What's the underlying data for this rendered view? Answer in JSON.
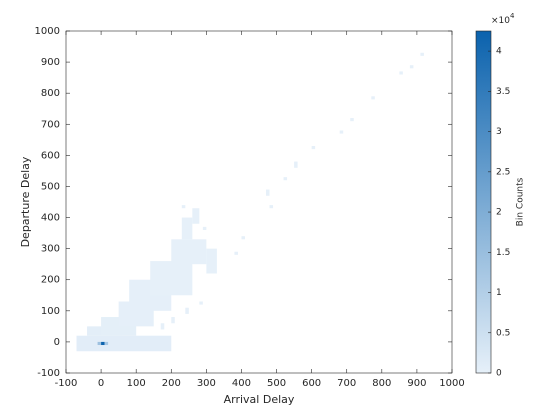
{
  "chart_data": {
    "type": "histogram2",
    "xlabel": "Arrival Delay",
    "ylabel": "Departure Delay",
    "xlim": [
      -100,
      1000
    ],
    "ylim": [
      -100,
      1000
    ],
    "xticks": [
      -100,
      0,
      100,
      200,
      300,
      400,
      500,
      600,
      700,
      800,
      900,
      1000
    ],
    "yticks": [
      -100,
      0,
      100,
      200,
      300,
      400,
      500,
      600,
      700,
      800,
      900,
      1000
    ],
    "colormap": [
      "#e6f0f9",
      "#0b62ad"
    ],
    "clim": [
      0,
      42500
    ],
    "colorbar_label": "Bin Counts",
    "colorbar_exponent": "×10",
    "colorbar_exponent_power": "4",
    "colorbar_ticks": [
      0,
      {
        "value": 5000,
        "label": "0.5"
      },
      {
        "value": 10000,
        "label": "1"
      },
      {
        "value": 15000,
        "label": "1.5"
      },
      {
        "value": 20000,
        "label": "2"
      },
      {
        "value": 25000,
        "label": "2.5"
      },
      {
        "value": 30000,
        "label": "3"
      },
      {
        "value": 35000,
        "label": "3.5"
      },
      {
        "value": 40000,
        "label": "4"
      }
    ],
    "cells": [
      {
        "x": [
          -70,
          200
        ],
        "y": [
          -30,
          20
        ],
        "count": 800
      },
      {
        "x": [
          -40,
          60
        ],
        "y": [
          20,
          50
        ],
        "count": 600
      },
      {
        "x": [
          0,
          100
        ],
        "y": [
          20,
          80
        ],
        "count": 400
      },
      {
        "x": [
          50,
          150
        ],
        "y": [
          50,
          130
        ],
        "count": 250
      },
      {
        "x": [
          80,
          200
        ],
        "y": [
          100,
          200
        ],
        "count": 150
      },
      {
        "x": [
          140,
          260
        ],
        "y": [
          150,
          260
        ],
        "count": 80
      },
      {
        "x": [
          200,
          300
        ],
        "y": [
          250,
          330
        ],
        "count": 40
      },
      {
        "x": [
          230,
          260
        ],
        "y": [
          330,
          400
        ],
        "count": 10
      },
      {
        "x": [
          260,
          280
        ],
        "y": [
          380,
          430
        ],
        "count": 5
      },
      {
        "x": [
          -10,
          0
        ],
        "y": [
          -10,
          0
        ],
        "count": 14000
      },
      {
        "x": [
          0,
          10
        ],
        "y": [
          -10,
          0
        ],
        "count": 42000
      },
      {
        "x": [
          10,
          20
        ],
        "y": [
          -10,
          0
        ],
        "count": 12000
      },
      {
        "x": [
          290,
          300
        ],
        "y": [
          360,
          370
        ],
        "count": 2
      },
      {
        "x": [
          230,
          240
        ],
        "y": [
          430,
          440
        ],
        "count": 2
      },
      {
        "x": [
          470,
          480
        ],
        "y": [
          470,
          490
        ],
        "count": 1
      },
      {
        "x": [
          480,
          490
        ],
        "y": [
          430,
          440
        ],
        "count": 1
      },
      {
        "x": [
          520,
          530
        ],
        "y": [
          520,
          530
        ],
        "count": 1
      },
      {
        "x": [
          550,
          560
        ],
        "y": [
          560,
          580
        ],
        "count": 1
      },
      {
        "x": [
          600,
          610
        ],
        "y": [
          620,
          630
        ],
        "count": 1
      },
      {
        "x": [
          680,
          690
        ],
        "y": [
          670,
          680
        ],
        "count": 1
      },
      {
        "x": [
          710,
          720
        ],
        "y": [
          710,
          720
        ],
        "count": 1
      },
      {
        "x": [
          770,
          780
        ],
        "y": [
          780,
          790
        ],
        "count": 1
      },
      {
        "x": [
          850,
          860
        ],
        "y": [
          860,
          870
        ],
        "count": 1
      },
      {
        "x": [
          880,
          890
        ],
        "y": [
          880,
          890
        ],
        "count": 1
      },
      {
        "x": [
          910,
          920
        ],
        "y": [
          920,
          930
        ],
        "count": 1
      },
      {
        "x": [
          300,
          330
        ],
        "y": [
          220,
          300
        ],
        "count": 3
      },
      {
        "x": [
          240,
          250
        ],
        "y": [
          90,
          110
        ],
        "count": 2
      },
      {
        "x": [
          400,
          410
        ],
        "y": [
          330,
          340
        ],
        "count": 1
      },
      {
        "x": [
          380,
          390
        ],
        "y": [
          280,
          290
        ],
        "count": 1
      },
      {
        "x": [
          200,
          210
        ],
        "y": [
          60,
          80
        ],
        "count": 3
      },
      {
        "x": [
          170,
          180
        ],
        "y": [
          40,
          60
        ],
        "count": 4
      },
      {
        "x": [
          280,
          290
        ],
        "y": [
          120,
          130
        ],
        "count": 2
      }
    ]
  }
}
